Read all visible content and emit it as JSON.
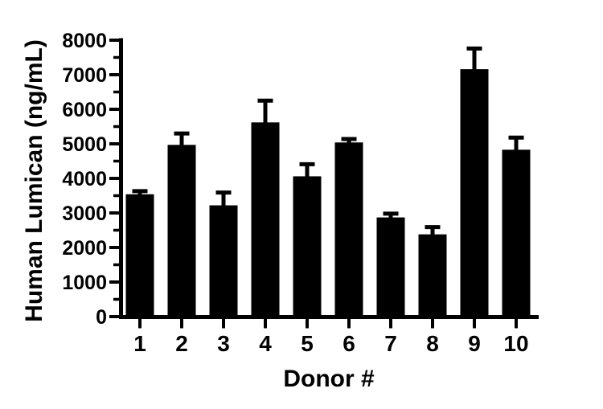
{
  "chart_data": {
    "type": "bar",
    "title": "",
    "xlabel": "Donor #",
    "ylabel": "Human Lumican (ng/mL)",
    "categories": [
      "1",
      "2",
      "3",
      "4",
      "5",
      "6",
      "7",
      "8",
      "9",
      "10"
    ],
    "series": [
      {
        "name": "Human Lumican (ng/mL)",
        "values": [
          3540,
          4970,
          3220,
          5620,
          4060,
          5040,
          2870,
          2380,
          7160,
          4830
        ],
        "errors_plus": [
          90,
          330,
          370,
          630,
          350,
          100,
          110,
          210,
          600,
          350
        ]
      }
    ],
    "ylim": [
      0,
      8000
    ],
    "ytick_interval": 1000,
    "yminor_tick_interval": 500,
    "ytick_labels": [
      "0",
      "1000",
      "2000",
      "3000",
      "4000",
      "5000",
      "6000",
      "7000",
      "8000"
    ],
    "error_bar_direction": "plus_only",
    "bar_color": "#000000",
    "axis_color": "#000000",
    "text_color": "#000000",
    "background_color": "#ffffff",
    "grid": false,
    "legend": null
  }
}
